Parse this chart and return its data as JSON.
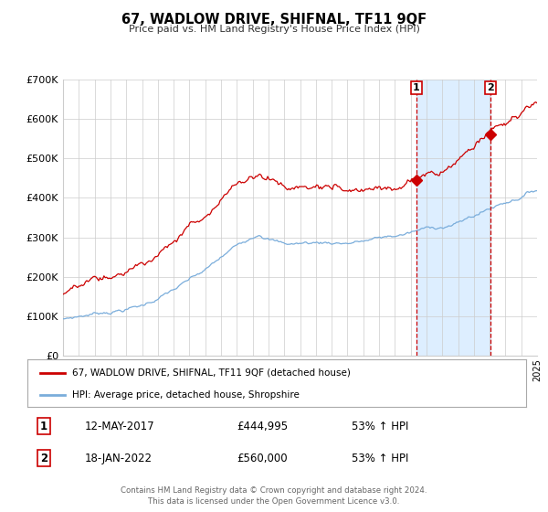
{
  "title": "67, WADLOW DRIVE, SHIFNAL, TF11 9QF",
  "subtitle": "Price paid vs. HM Land Registry's House Price Index (HPI)",
  "legend_line1": "67, WADLOW DRIVE, SHIFNAL, TF11 9QF (detached house)",
  "legend_line2": "HPI: Average price, detached house, Shropshire",
  "marker1_date_num": 2017.36,
  "marker1_label": "1",
  "marker1_value": 444995,
  "marker1_text": "12-MAY-2017",
  "marker1_pct": "53% ↑ HPI",
  "marker2_date_num": 2022.05,
  "marker2_label": "2",
  "marker2_value": 560000,
  "marker2_text": "18-JAN-2022",
  "marker2_pct": "53% ↑ HPI",
  "red_color": "#cc0000",
  "blue_color": "#7aaddb",
  "shade_color": "#ddeeff",
  "grid_color": "#cccccc",
  "background_color": "#ffffff",
  "footer1": "Contains HM Land Registry data © Crown copyright and database right 2024.",
  "footer2": "This data is licensed under the Open Government Licence v3.0.",
  "ylim_max": 700000,
  "ylim_min": 0,
  "xlim_min": 1995,
  "xlim_max": 2025
}
